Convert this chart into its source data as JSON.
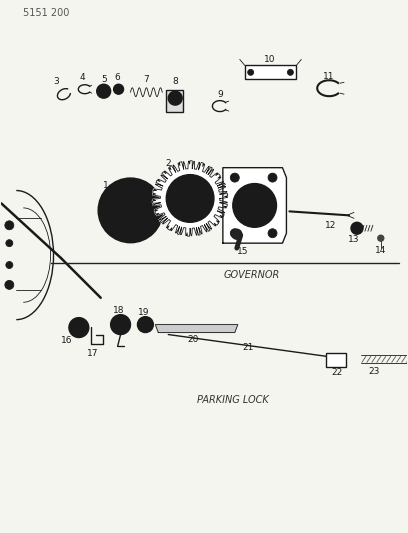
{
  "title_code": "5151 200",
  "governor_label": "GOVERNOR",
  "parking_label": "PARKING LOCK",
  "bg_color": "#f5f5f0",
  "line_color": "#1a1a1a",
  "label_color": "#1a1a1a",
  "fig_width": 4.08,
  "fig_height": 5.33,
  "dpi": 100
}
